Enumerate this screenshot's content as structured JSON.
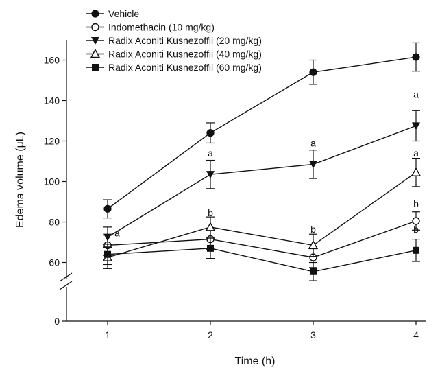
{
  "chart_data": {
    "type": "line",
    "title": "",
    "xlabel": "Time (h)",
    "ylabel": "Edema volume (μL)",
    "x": [
      1,
      2,
      3,
      4
    ],
    "x_tick_labels": [
      "1",
      "2",
      "3",
      "4"
    ],
    "y_tick_labels": [
      "0",
      "60",
      "80",
      "100",
      "120",
      "140",
      "160"
    ],
    "y_lower_tick": 0,
    "y_ticks": [
      60,
      80,
      100,
      120,
      140,
      160
    ],
    "ylim": [
      50,
      168
    ],
    "axis_break": true,
    "legend_position": "top-left",
    "grid": false,
    "series": [
      {
        "name": "Vehicle",
        "marker": "filled-circle",
        "values": [
          86.5,
          124,
          154,
          161.5
        ],
        "errors": [
          4.5,
          5,
          6,
          7
        ]
      },
      {
        "name": "Indomethacin (10 mg/kg)",
        "marker": "open-circle",
        "values": [
          68.5,
          71.5,
          62.5,
          80.5
        ],
        "errors": [
          5,
          5,
          5,
          4.5
        ]
      },
      {
        "name": "Radix Aconiti Kusnezoffii  (20 mg/kg)",
        "marker": "filled-triangle-down",
        "values": [
          72.5,
          103.5,
          108.5,
          127.5
        ],
        "errors": [
          5,
          7,
          7,
          7.5
        ]
      },
      {
        "name": "Radix Aconiti Kusnezoffii  (40 mg/kg)",
        "marker": "open-triangle-up",
        "values": [
          62.5,
          77.5,
          68.5,
          104.5
        ],
        "errors": [
          5.5,
          5,
          5.5,
          7
        ]
      },
      {
        "name": "Radix Aconiti Kusnezoffii  (60 mg/kg)",
        "marker": "filled-square",
        "values": [
          64,
          67,
          55.5,
          66
        ],
        "errors": [
          5,
          5,
          4.5,
          5.5
        ]
      }
    ],
    "annotations": [
      {
        "text": "a",
        "x": 1,
        "y": 74.5
      },
      {
        "text": "a",
        "x": 2,
        "y": 114
      },
      {
        "text": "b",
        "x": 2,
        "y": 84.5
      },
      {
        "text": "a",
        "x": 3,
        "y": 119
      },
      {
        "text": "b",
        "x": 3,
        "y": 76.5
      },
      {
        "text": "a",
        "x": 4,
        "y": 143
      },
      {
        "text": "a",
        "x": 4,
        "y": 114
      },
      {
        "text": "b",
        "x": 4,
        "y": 89
      },
      {
        "text": "b",
        "x": 4,
        "y": 76.5
      }
    ]
  }
}
